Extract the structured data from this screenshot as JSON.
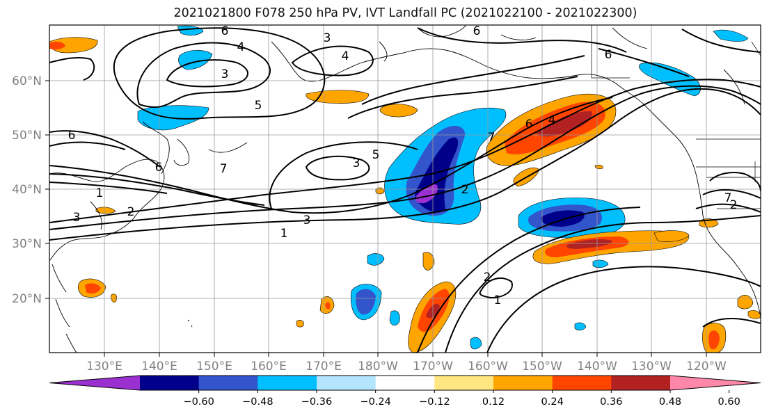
{
  "title": "2021021800 F078 250 hPa PV, IVT Landfall PC (2021022100 - 2021022300)",
  "lat_labels": [
    "60°N",
    "50°N",
    "40°N",
    "30°N",
    "20°N"
  ],
  "lon_labels": [
    "130°E",
    "140°E",
    "150°E",
    "160°E",
    "170°E",
    "180°W",
    "170°W",
    "160°W",
    "150°W",
    "140°W",
    "130°W",
    "120°W"
  ],
  "colorbar": {
    "colors": [
      "#9b30d0",
      "#00008b",
      "#3355cc",
      "#00bfff",
      "#b3e5ff",
      "#ffffff",
      "#ffe680",
      "#ffa500",
      "#ff4500",
      "#b22222",
      "#ff88aa"
    ],
    "tick_labels": [
      "−0.60",
      "−0.48",
      "−0.36",
      "−0.24",
      "−0.12",
      "0.12",
      "0.24",
      "0.36",
      "0.48",
      "0.60"
    ]
  },
  "contour_labels": [
    "6",
    "3",
    "6",
    "4",
    "3",
    "4",
    "6",
    "5",
    "6",
    "3",
    "5",
    "7",
    "6",
    "7",
    "1",
    "2",
    "3",
    "3",
    "1",
    "2",
    "1",
    "6",
    "4",
    "7",
    "2",
    "2"
  ]
}
